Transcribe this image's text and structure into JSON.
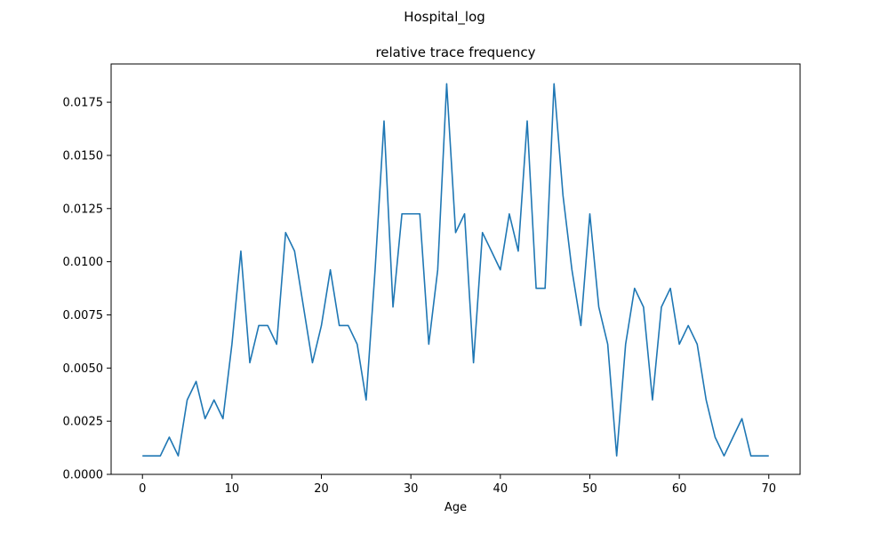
{
  "figure": {
    "suptitle": "Hospital_log",
    "title": "relative trace frequency",
    "xlabel": "Age"
  },
  "chart_data": {
    "type": "line",
    "title": "relative trace frequency",
    "suptitle": "Hospital_log",
    "xlabel": "Age",
    "ylabel": "",
    "xlim": [
      -3.5,
      73.5
    ],
    "ylim": [
      0,
      0.0193
    ],
    "xticks": [
      "0",
      "10",
      "20",
      "30",
      "40",
      "50",
      "60",
      "70"
    ],
    "yticks": [
      "0.0000",
      "0.0025",
      "0.0050",
      "0.0075",
      "0.0100",
      "0.0125",
      "0.0150",
      "0.0175"
    ],
    "grid": false,
    "series": [
      {
        "color": "#1f77b4",
        "x": [
          0,
          1,
          2,
          3,
          4,
          5,
          6,
          7,
          8,
          9,
          10,
          11,
          12,
          13,
          14,
          15,
          16,
          17,
          18,
          19,
          20,
          21,
          22,
          23,
          24,
          25,
          26,
          27,
          28,
          29,
          30,
          31,
          32,
          33,
          34,
          35,
          36,
          37,
          38,
          39,
          40,
          41,
          42,
          43,
          44,
          45,
          46,
          47,
          48,
          49,
          50,
          51,
          52,
          53,
          54,
          55,
          56,
          57,
          58,
          59,
          60,
          61,
          62,
          63,
          64,
          65,
          66,
          67,
          68,
          69,
          70
        ],
        "values": [
          0.00087,
          0.00087,
          0.00087,
          0.00175,
          0.00087,
          0.0035,
          0.00437,
          0.00262,
          0.0035,
          0.00262,
          0.00612,
          0.0105,
          0.00525,
          0.007,
          0.007,
          0.00612,
          0.01137,
          0.0105,
          0.00787,
          0.00525,
          0.007,
          0.00962,
          0.007,
          0.007,
          0.00612,
          0.0035,
          0.00962,
          0.01662,
          0.00787,
          0.01225,
          0.01225,
          0.01225,
          0.00612,
          0.00962,
          0.01837,
          0.01137,
          0.01225,
          0.00525,
          0.01137,
          0.0105,
          0.00962,
          0.01225,
          0.0105,
          0.01662,
          0.00875,
          0.00875,
          0.01837,
          0.01312,
          0.00962,
          0.007,
          0.01225,
          0.00787,
          0.00612,
          0.00087,
          0.00612,
          0.00875,
          0.00787,
          0.0035,
          0.00787,
          0.00875,
          0.00612,
          0.007,
          0.00612,
          0.0035,
          0.00175,
          0.00087,
          0.00175,
          0.00262,
          0.00087,
          0.00087,
          0.00087
        ]
      }
    ]
  }
}
